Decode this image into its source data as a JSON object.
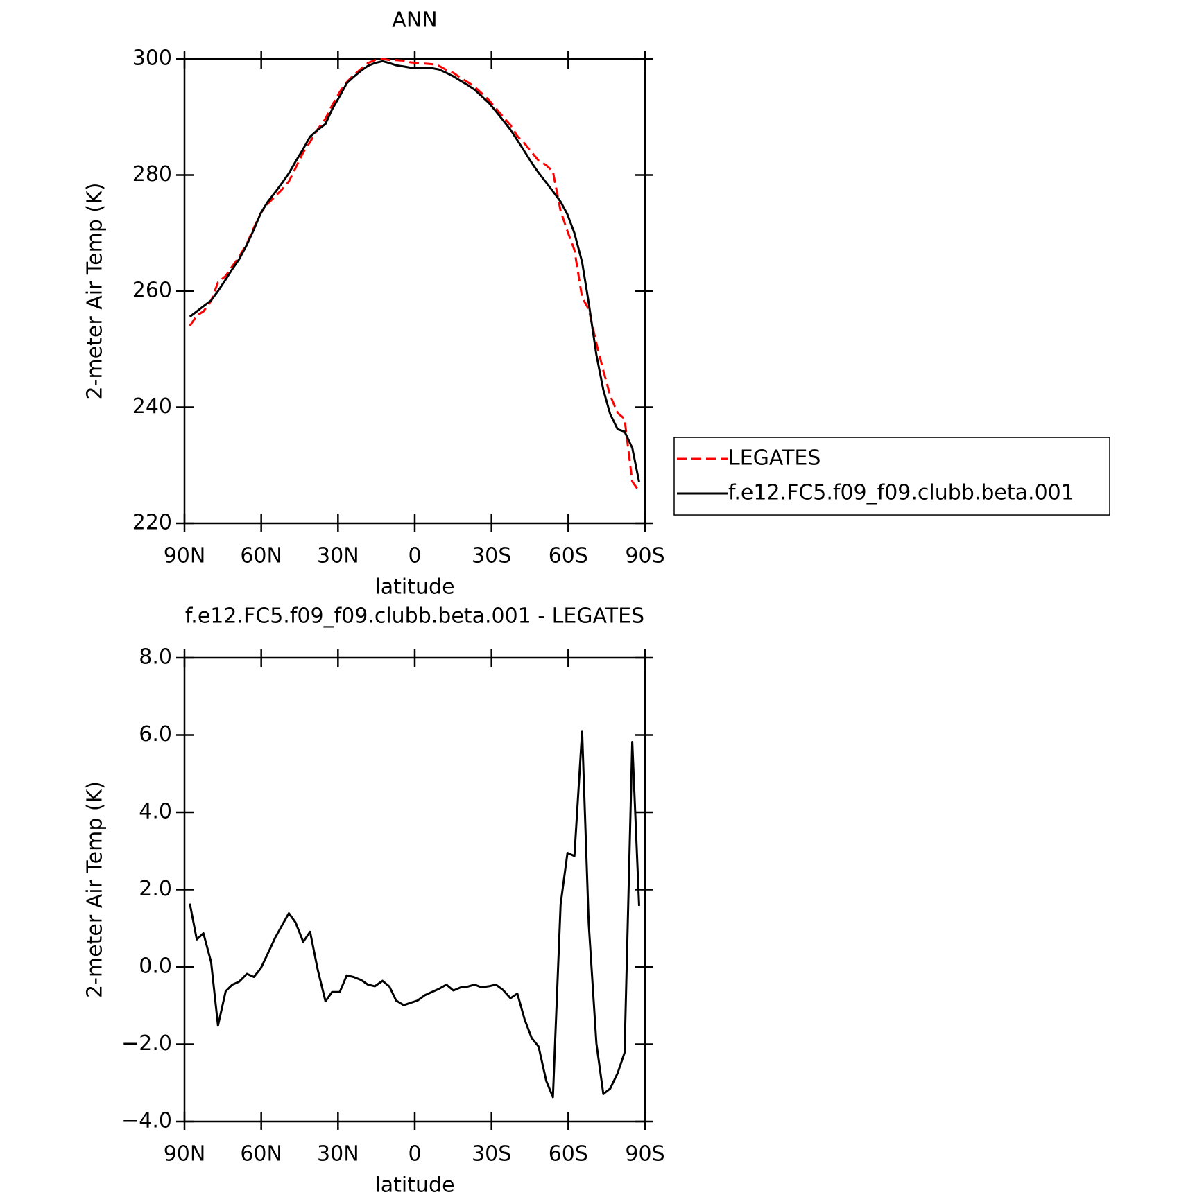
{
  "chart_data": [
    {
      "type": "line",
      "title": "ANN",
      "xlabel": "latitude",
      "ylabel": "2-meter Air Temp (K)",
      "x": [
        87.9,
        85.2,
        82.6,
        79.6,
        76.9,
        73.9,
        71.3,
        68.6,
        65.6,
        62.9,
        60.2,
        57.6,
        54.6,
        51.9,
        49.2,
        46.6,
        43.6,
        40.9,
        37.9,
        34.9,
        32.3,
        29.3,
        26.6,
        23.9,
        20.9,
        18.3,
        15.6,
        12.6,
        9.9,
        7.3,
        4.3,
        1.6,
        -1.1,
        -4.0,
        -6.7,
        -9.4,
        -12.4,
        -15.1,
        -18.0,
        -20.7,
        -23.4,
        -26.1,
        -29.0,
        -31.7,
        -34.4,
        -37.4,
        -40.1,
        -43.0,
        -45.7,
        -48.4,
        -51.4,
        -54.0,
        -57.0,
        -59.7,
        -62.4,
        -65.4,
        -68.0,
        -71.0,
        -73.7,
        -76.4,
        -79.3,
        -82.0,
        -85.0,
        -87.7
      ],
      "series": [
        {
          "name": "LEGATES",
          "color": "#ff0000",
          "linestyle": "dashed",
          "values": [
            254.0,
            255.8,
            256.5,
            258.3,
            261.5,
            262.6,
            264.3,
            265.9,
            268.2,
            270.9,
            273.4,
            275.0,
            276.3,
            277.5,
            278.9,
            281.2,
            283.9,
            285.7,
            287.9,
            289.7,
            292.0,
            294.3,
            296.0,
            297.2,
            298.3,
            299.3,
            299.8,
            300.0,
            299.8,
            299.8,
            299.7,
            299.4,
            299.3,
            299.2,
            299.1,
            298.8,
            298.1,
            297.6,
            296.7,
            296.0,
            295.2,
            294.1,
            292.9,
            291.5,
            290.1,
            288.6,
            286.7,
            285.4,
            283.9,
            282.5,
            281.7,
            280.6,
            273.8,
            270.3,
            267.1,
            258.9,
            256.9,
            251.0,
            246.3,
            242.0,
            239.0,
            238.0,
            227.2,
            225.5
          ]
        },
        {
          "name": "f.e12.FC5.f09_f09.clubb.beta.001",
          "color": "#000000",
          "linestyle": "solid",
          "values": [
            255.6,
            256.5,
            257.4,
            258.4,
            260.0,
            262.0,
            263.8,
            265.5,
            268.0,
            270.6,
            273.4,
            275.3,
            277.0,
            278.6,
            280.3,
            282.3,
            284.5,
            286.6,
            287.8,
            288.8,
            291.3,
            293.6,
            295.8,
            296.9,
            298.0,
            298.8,
            299.3,
            299.6,
            299.3,
            298.9,
            298.7,
            298.5,
            298.4,
            298.5,
            298.4,
            298.2,
            297.6,
            297.0,
            296.2,
            295.5,
            294.7,
            293.6,
            292.4,
            291.0,
            289.5,
            287.8,
            286.0,
            284.0,
            282.1,
            280.4,
            278.7,
            277.2,
            275.4,
            273.2,
            270.0,
            265.0,
            258.0,
            249.0,
            243.0,
            238.8,
            236.2,
            235.8,
            233.0,
            227.1
          ]
        }
      ],
      "xlim": [
        90,
        -90
      ],
      "xticks": [
        {
          "value": 90,
          "label": "90N"
        },
        {
          "value": 60,
          "label": "60N"
        },
        {
          "value": 30,
          "label": "30N"
        },
        0,
        {
          "value": -30,
          "label": "30S"
        },
        {
          "value": -60,
          "label": "60S"
        },
        {
          "value": -90,
          "label": "90S"
        }
      ],
      "ylim": [
        220,
        300
      ],
      "yticks": [
        220,
        240,
        260,
        280,
        300
      ],
      "legend": "right"
    },
    {
      "type": "line",
      "title": "f.e12.FC5.f09_f09.clubb.beta.001 - LEGATES",
      "xlabel": "latitude",
      "ylabel": "2-meter Air Temp (K)",
      "x": [
        87.9,
        85.2,
        82.6,
        79.6,
        76.9,
        73.9,
        71.3,
        68.6,
        65.6,
        62.9,
        60.2,
        57.6,
        54.6,
        51.9,
        49.2,
        46.6,
        43.6,
        40.9,
        37.9,
        34.9,
        32.3,
        29.3,
        26.6,
        23.9,
        20.9,
        18.3,
        15.6,
        12.6,
        9.9,
        7.3,
        4.3,
        1.6,
        -1.1,
        -4.0,
        -6.7,
        -9.4,
        -12.4,
        -15.1,
        -18.0,
        -20.7,
        -23.4,
        -26.1,
        -29.0,
        -31.7,
        -34.4,
        -37.4,
        -40.1,
        -43.0,
        -45.7,
        -48.4,
        -51.4,
        -54.0,
        -57.0,
        -59.7,
        -62.4,
        -65.4,
        -68.0,
        -71.0,
        -73.7,
        -76.4,
        -79.3,
        -82.0,
        -85.0,
        -87.7
      ],
      "series": [
        {
          "color": "#000000",
          "linestyle": "solid",
          "values": [
            1.64,
            0.71,
            0.87,
            0.12,
            -1.52,
            -0.63,
            -0.46,
            -0.38,
            -0.18,
            -0.26,
            -0.04,
            0.32,
            0.75,
            1.07,
            1.39,
            1.15,
            0.65,
            0.91,
            -0.08,
            -0.89,
            -0.65,
            -0.65,
            -0.22,
            -0.26,
            -0.34,
            -0.46,
            -0.5,
            -0.36,
            -0.51,
            -0.87,
            -0.99,
            -0.93,
            -0.87,
            -0.73,
            -0.65,
            -0.57,
            -0.46,
            -0.61,
            -0.53,
            -0.51,
            -0.46,
            -0.53,
            -0.5,
            -0.46,
            -0.59,
            -0.81,
            -0.69,
            -1.37,
            -1.84,
            -2.06,
            -2.95,
            -3.37,
            1.62,
            2.95,
            2.87,
            6.1,
            1.13,
            -1.98,
            -3.29,
            -3.15,
            -2.75,
            -2.22,
            5.82,
            1.58
          ]
        }
      ],
      "xlim": [
        90,
        -90
      ],
      "xticks": [
        {
          "value": 90,
          "label": "90N"
        },
        {
          "value": 60,
          "label": "60N"
        },
        {
          "value": 30,
          "label": "30N"
        },
        0,
        {
          "value": -30,
          "label": "30S"
        },
        {
          "value": -60,
          "label": "60S"
        },
        {
          "value": -90,
          "label": "90S"
        }
      ],
      "ylim": [
        -4,
        8
      ],
      "yticks": [
        {
          "value": -4,
          "label": "−4.0"
        },
        {
          "value": -2,
          "label": "−2.0"
        },
        {
          "value": 0,
          "label": "0.0"
        },
        {
          "value": 2,
          "label": "2.0"
        },
        {
          "value": 4,
          "label": "4.0"
        },
        {
          "value": 6,
          "label": "6.0"
        },
        {
          "value": 8,
          "label": "8.0"
        }
      ]
    }
  ]
}
